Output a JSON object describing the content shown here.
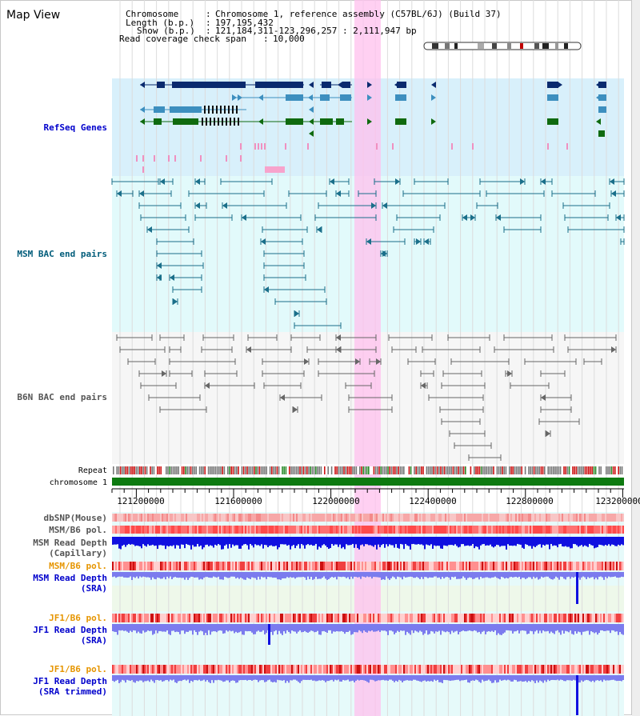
{
  "page": {
    "title": "Map View"
  },
  "info": {
    "chromosome_label": "Chromosome",
    "chromosome_value": "Chromosome 1, reference assembly (C57BL/6J) (Build 37)",
    "length_label": "Length (b.p.)",
    "length_value": "197,195,432",
    "show_label": "Show (b.p.)",
    "show_value": "121,184,311-123,296,257 : 2,111,947 bp",
    "coverage_label": "Read coverage check span",
    "coverage_value": "10,000"
  },
  "tracks": {
    "refseq": "RefSeq Genes",
    "msm_bac": "MSM BAC end pairs",
    "b6n_bac": "B6N BAC end pairs",
    "repeat": "Repeat",
    "chromosome": "chromosome 1",
    "dbsnp": "dbSNP(Mouse)",
    "msm_b6_pol": "MSM/B6 pol.",
    "msm_depth_cap_1": "MSM Read Depth",
    "msm_depth_cap_2": "(Capillary)",
    "msm_b6_pol_2": "MSM/B6 pol.",
    "msm_depth_sra_1": "MSM Read Depth",
    "msm_depth_sra_2": "(SRA)",
    "jf1_b6_pol": "JF1/B6 pol.",
    "jf1_depth_sra_1": "JF1 Read Depth",
    "jf1_depth_sra_2": "(SRA)",
    "jf1_b6_pol_2": "JF1/B6 pol.",
    "jf1_depth_trim_1": "JF1 Read Depth",
    "jf1_depth_trim_2": "(SRA trimmed)"
  },
  "axis": {
    "ticks": [
      "121200000",
      "121600000",
      "122000000",
      "122400000",
      "122800000",
      "123200000"
    ]
  },
  "colors": {
    "label_blue": "#0000cc",
    "label_teal": "#005c7a",
    "label_gray": "#555555",
    "label_orange": "#e69500",
    "highlight": "#ffc0ee",
    "refseq_bg": "#d8f0fb",
    "bac_bg": "#e2fafb",
    "gene_navy": "#0a2a6e",
    "gene_steel": "#3d8fbf",
    "gene_green": "#0f6a0f",
    "bac_line_teal": "#1a6f8a",
    "bac_line_gray": "#666666",
    "chrom_green": "#0d7a10",
    "depth_blue": "#1010e0",
    "depth_light": "#7b7bee"
  }
}
